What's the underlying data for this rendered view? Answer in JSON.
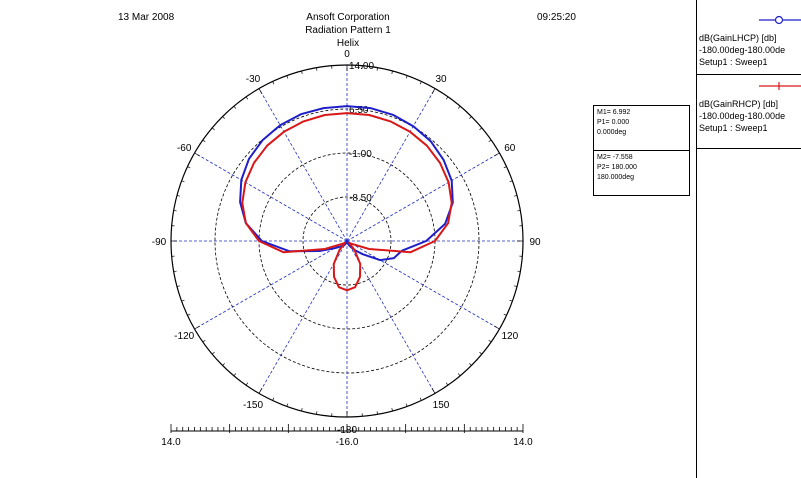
{
  "header": {
    "date": "13 Mar 2008",
    "company": "Ansoft Corporation",
    "title": "Radiation Pattern 1",
    "subtitle": "Helix",
    "time": "09:25:20"
  },
  "legend": {
    "entries": [
      {
        "line1": "dB(GainLHCP) [db]",
        "line2": "-180.00deg-180.00de",
        "line3": "Setup1 : Sweep1",
        "color": "#1f1fc8",
        "marker": "circle"
      },
      {
        "line1": "dB(GainRHCP) [db]",
        "line2": "-180.00deg-180.00de",
        "line3": "Setup1 : Sweep1",
        "color": "#d81818",
        "marker": "tick"
      }
    ]
  },
  "markers": [
    {
      "line1": "M1= 6.992",
      "line2": "P1= 0.000",
      "line3": "0.000deg"
    },
    {
      "line1": "M2= -7.558",
      "line2": "P2= 180.000",
      "line3": "180.000deg"
    }
  ],
  "chart_data": {
    "type": "polar",
    "title": "Radiation Pattern 1",
    "subtitle": "Helix",
    "radial_range": [
      -16.0,
      14.0
    ],
    "radial_labels": [
      "14.00",
      "6.50",
      "-1.00",
      "-8.50"
    ],
    "angle_labels": [
      "0",
      "30",
      "60",
      "90",
      "120",
      "150",
      "-180",
      "-150",
      "-120",
      "-90",
      "-60",
      "-30"
    ],
    "bottom_scale_labels": [
      "14.0",
      "-16.0",
      "14.0"
    ],
    "grid": true,
    "series": [
      {
        "name": "dB(GainLHCP) [db]",
        "color": "#1f1fc8",
        "theta": [
          0,
          10,
          20,
          30,
          40,
          50,
          60,
          70,
          80,
          90,
          100,
          110,
          120,
          130,
          140,
          150,
          160,
          170,
          180,
          -170,
          -160,
          -150,
          -140,
          -130,
          -120,
          -110,
          -100,
          -90,
          -80,
          -70,
          -60,
          -50,
          -40,
          -30,
          -20,
          -10
        ],
        "r": [
          7.0,
          7.0,
          6.9,
          6.6,
          6.2,
          5.5,
          4.6,
          3.2,
          1.0,
          -2.5,
          -6.5,
          -7.5,
          -9.5,
          -12.5,
          -14.0,
          -15.0,
          -15.5,
          -15.8,
          -16.0,
          -15.8,
          -15.6,
          -15.3,
          -15.0,
          -14.5,
          -13.5,
          -11.0,
          -6.0,
          -1.5,
          1.5,
          3.4,
          4.8,
          5.8,
          6.4,
          6.8,
          7.0,
          7.0
        ]
      },
      {
        "name": "dB(GainRHCP) [db]",
        "color": "#d81818",
        "theta": [
          0,
          10,
          20,
          30,
          40,
          50,
          60,
          70,
          80,
          90,
          100,
          110,
          120,
          130,
          140,
          150,
          160,
          170,
          180,
          -170,
          -160,
          -150,
          -140,
          -130,
          -120,
          -110,
          -100,
          -90,
          -80,
          -70,
          -60,
          -50,
          -40,
          -30,
          -20,
          -10
        ],
        "r": [
          5.8,
          5.8,
          5.7,
          5.5,
          5.2,
          4.7,
          4.0,
          3.0,
          1.5,
          -1.0,
          -5.0,
          -12.0,
          -15.0,
          -15.5,
          -14.0,
          -11.5,
          -9.5,
          -8.0,
          -7.6,
          -8.0,
          -9.5,
          -11.5,
          -14.0,
          -15.5,
          -15.0,
          -12.0,
          -5.0,
          -1.0,
          1.5,
          3.0,
          4.0,
          4.7,
          5.2,
          5.5,
          5.7,
          5.8
        ]
      }
    ]
  }
}
